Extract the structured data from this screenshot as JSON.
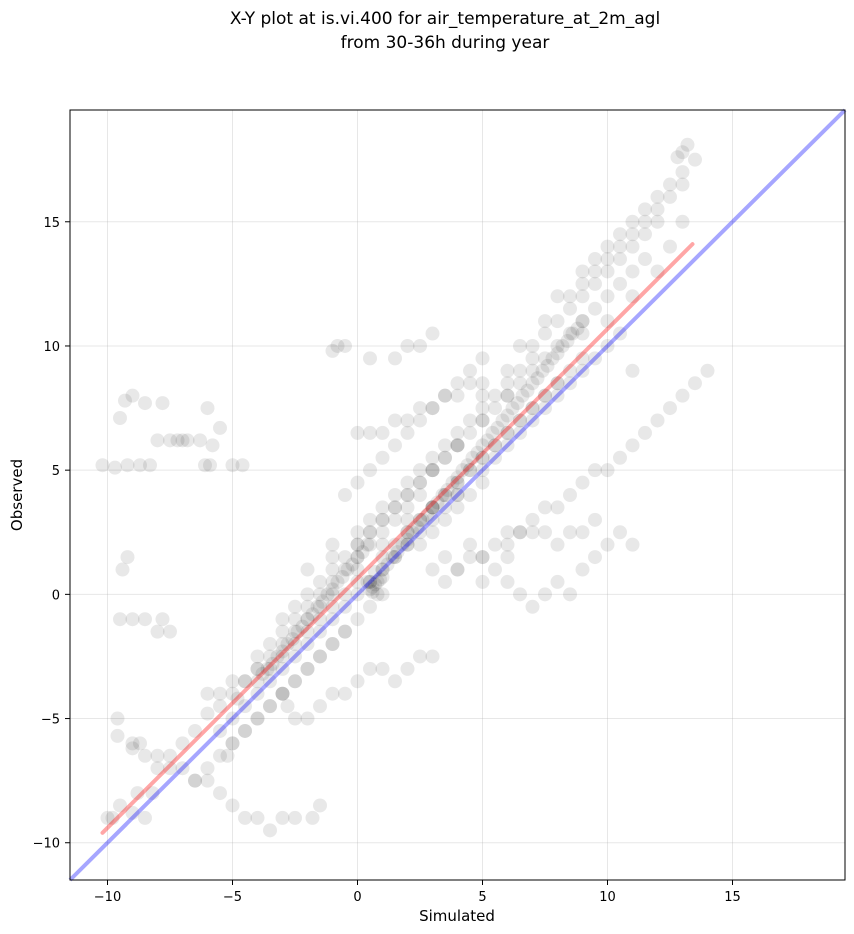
{
  "chart_data": {
    "type": "scatter",
    "title": "X-Y plot at is.vi.400 for air_temperature_at_2m_agl",
    "subtitle": "from 30-36h during year",
    "xlabel": "Simulated",
    "ylabel": "Observed",
    "xlim": [
      -11.5,
      19.5
    ],
    "ylim": [
      -11.5,
      19.5
    ],
    "xticks": [
      -10,
      -5,
      0,
      5,
      10,
      15
    ],
    "yticks": [
      -10,
      -5,
      0,
      5,
      10,
      15
    ],
    "grid": true,
    "colors": {
      "points": "#000000",
      "regression_line": "#ff0000",
      "identity_line": "#0000ff"
    },
    "series": [
      {
        "type": "scatter",
        "x": [
          -10.2,
          -9.7,
          -9.2,
          -8.7,
          -8.3,
          -9.5,
          -9.3,
          -9.0,
          -8.5,
          -8.0,
          -7.5,
          -7.2,
          -7.0,
          -6.8,
          -6.3,
          -5.8,
          -5.5,
          -5.0,
          -4.6,
          -6.0,
          -6.1,
          -5.9,
          -7.8,
          -9.4,
          -9.2,
          -9.5,
          -9.0,
          -8.5,
          -7.8,
          -7.5,
          -8.0,
          -9.6,
          -9.6,
          -9.0,
          -8.7,
          -10.0,
          -9.8,
          -9.5,
          -9.0,
          -8.8,
          -8.5,
          -8.2,
          -8.0,
          -7.5,
          -7.0,
          -6.5,
          -6.0,
          -5.5,
          -5.0,
          -4.8,
          -4.5,
          -4.0,
          -3.5,
          -3.0,
          -2.5,
          -2.0,
          -1.5,
          -1.0,
          -5.2,
          -5.0,
          -4.5,
          -4.0,
          -3.5,
          -3.0,
          -2.5,
          -2.0,
          -1.5,
          -1.0,
          -0.5,
          -6.5,
          -6.0,
          -5.5,
          -5.0,
          -4.5,
          -4.0,
          -3.5,
          -3.0,
          -2.5,
          -2.0,
          -1.5,
          -1.0,
          -0.5,
          0.0,
          0.5,
          1.0,
          -4.0,
          -3.5,
          -3.0,
          -2.5,
          -2.0,
          -1.5,
          -1.0,
          -0.5,
          0.0,
          0.5,
          1.0,
          1.5,
          2.0,
          2.5,
          -3.0,
          -2.5,
          -2.0,
          -1.5,
          -1.0,
          -0.5,
          0.0,
          0.5,
          1.0,
          1.5,
          2.0,
          2.5,
          3.0,
          3.5,
          4.0,
          -2.0,
          -1.0,
          0.0,
          0.5,
          1.0,
          1.5,
          2.0,
          2.5,
          3.0,
          3.5,
          4.0,
          4.5,
          5.0,
          5.5,
          6.0,
          -1.0,
          0.0,
          0.5,
          1.0,
          1.5,
          2.0,
          2.5,
          3.0,
          3.5,
          4.0,
          4.5,
          5.0,
          5.5,
          6.0,
          6.5,
          7.0,
          0.0,
          1.0,
          1.5,
          2.0,
          2.5,
          3.0,
          3.5,
          4.0,
          4.5,
          5.0,
          5.5,
          6.0,
          6.5,
          7.0,
          7.5,
          8.0,
          1.0,
          2.0,
          2.5,
          3.0,
          3.5,
          4.0,
          4.5,
          5.0,
          5.5,
          6.0,
          6.5,
          7.0,
          7.5,
          8.0,
          8.5,
          9.0,
          2.0,
          3.0,
          4.0,
          5.0,
          5.5,
          6.0,
          6.5,
          7.0,
          7.5,
          8.0,
          8.5,
          9.0,
          9.5,
          10.0,
          10.5,
          3.0,
          4.0,
          5.0,
          6.0,
          6.5,
          7.0,
          7.5,
          8.0,
          8.5,
          9.0,
          9.5,
          10.0,
          10.5,
          11.0,
          11.5,
          5.0,
          6.0,
          7.0,
          7.5,
          8.0,
          8.5,
          9.0,
          9.5,
          10.0,
          10.5,
          11.0,
          11.5,
          12.0,
          6.5,
          7.5,
          8.5,
          9.0,
          9.5,
          10.0,
          10.5,
          11.0,
          11.5,
          12.0,
          12.5,
          13.0,
          8.0,
          9.0,
          9.5,
          10.0,
          10.5,
          11.0,
          11.5,
          12.0,
          12.5,
          13.0,
          13.5,
          9.0,
          10.0,
          11.0,
          12.0,
          12.5,
          13.0,
          13.2,
          13.0,
          12.8,
          11.0,
          -1.0,
          -0.8,
          -0.5,
          0.5,
          1.5,
          2.0,
          2.5,
          3.0,
          0.0,
          0.5,
          1.0,
          1.5,
          2.0,
          2.5,
          3.0,
          3.5,
          4.0,
          4.5,
          5.0,
          3.0,
          3.5,
          4.0,
          5.0,
          6.0,
          6.5,
          7.0,
          7.5,
          8.0,
          8.5,
          9.0,
          9.5,
          10.0,
          10.5,
          11.0,
          -3.0,
          -2.8,
          -2.5,
          -2.0,
          -1.5,
          -1.0,
          -0.5,
          0.0,
          0.5,
          1.0,
          1.5,
          2.0,
          2.5,
          3.0,
          -1.8,
          -1.5,
          -2.5,
          -3.0,
          -3.5,
          -4.0,
          -4.5,
          -5.0,
          -5.5,
          -6.0,
          -6.5,
          -7.0,
          -7.5,
          -8.0,
          -8.5,
          -9.0,
          -6.0,
          -5.5,
          -5.0,
          -4.5,
          -4.0,
          -3.5,
          -3.0,
          -2.5,
          -2.0,
          -1.5,
          -1.0,
          -0.5,
          0.0,
          0.5,
          1.0,
          1.5,
          2.0,
          2.5,
          3.0,
          3.5,
          4.0,
          4.5,
          5.0,
          0.5,
          0.6,
          0.7,
          0.8,
          0.9,
          1.0,
          0.6,
          0.8,
          0.4,
          0.7,
          1.2,
          1.4,
          1.6,
          1.8,
          2.0,
          2.2,
          2.4,
          2.6,
          2.8,
          3.0,
          3.2,
          3.4,
          3.6,
          3.8,
          4.0,
          4.2,
          4.4,
          4.6,
          4.8,
          5.0,
          5.2,
          5.4,
          5.6,
          5.8,
          6.0,
          6.2,
          6.4,
          6.6,
          6.8,
          7.0,
          7.2,
          7.4,
          7.6,
          7.8,
          8.0,
          8.2,
          8.4,
          8.6,
          8.8,
          9.0,
          -4.0,
          -3.8,
          -3.6,
          -3.4,
          -3.2,
          -3.0,
          -2.8,
          -2.6,
          -2.4,
          -2.2,
          -2.0,
          -1.8,
          -1.6,
          -1.4,
          -1.2,
          -1.0,
          -0.8,
          -0.6,
          -0.4,
          -0.2,
          0.0,
          0.2,
          0.4,
          6.0,
          6.5,
          7.0,
          7.5,
          8.0,
          8.5,
          9.0,
          9.5,
          4.5,
          5.0,
          5.5,
          6.0,
          3.5,
          4.0,
          4.5,
          5.0,
          5.5,
          6.0,
          6.5,
          7.0,
          7.5,
          8.0,
          8.5,
          9.0,
          9.5,
          10.0,
          10.5,
          11.0,
          11.5,
          12.0,
          12.5,
          13.0,
          13.5,
          14.0,
          -0.5,
          0.0,
          0.5,
          1.0,
          1.5,
          2.0,
          2.5,
          3.0,
          3.5,
          4.0,
          4.5,
          5.0,
          -5.5,
          -5.0,
          -4.5,
          -4.0,
          -3.5,
          -3.0,
          -2.5,
          -2.0,
          -1.5,
          -1.0,
          -0.5,
          0.0,
          0.5,
          1.0,
          1.5,
          2.0,
          2.5,
          3.0,
          3.5,
          4.0
        ],
        "y": [
          5.2,
          5.1,
          5.2,
          5.2,
          5.2,
          7.1,
          7.8,
          8.0,
          7.7,
          6.2,
          6.2,
          6.2,
          6.2,
          6.2,
          6.2,
          6.0,
          6.7,
          5.2,
          5.2,
          7.5,
          5.2,
          5.2,
          7.7,
          1.0,
          1.5,
          -1.0,
          -1.0,
          -1.0,
          -1.0,
          -1.5,
          -1.5,
          -5.0,
          -5.7,
          -6.2,
          -6.0,
          -9.0,
          -9.0,
          -8.5,
          -8.8,
          -8.0,
          -9.0,
          -8.0,
          -7.0,
          -6.5,
          -6.0,
          -5.5,
          -4.8,
          -4.5,
          -4.0,
          -4.2,
          -3.5,
          -3.0,
          -2.5,
          -2.0,
          -1.5,
          -1.0,
          -0.5,
          0.0,
          -6.5,
          -6.0,
          -5.5,
          -5.0,
          -4.5,
          -4.0,
          -3.5,
          -3.0,
          -2.5,
          -2.0,
          -1.5,
          -7.5,
          -7.0,
          -6.5,
          -6.0,
          -5.5,
          -5.0,
          -4.5,
          -4.0,
          -3.5,
          -3.0,
          -2.5,
          -2.0,
          -1.5,
          -1.0,
          -0.5,
          0.0,
          -2.5,
          -2.0,
          -1.5,
          -1.0,
          -0.5,
          0.0,
          0.5,
          1.0,
          1.5,
          2.0,
          2.5,
          3.0,
          3.5,
          4.0,
          -1.0,
          -0.5,
          0.0,
          0.5,
          1.0,
          1.5,
          2.0,
          2.5,
          3.0,
          3.5,
          4.0,
          4.5,
          5.0,
          5.5,
          6.0,
          1.0,
          1.5,
          2.0,
          2.5,
          3.0,
          3.5,
          4.0,
          4.5,
          5.0,
          5.5,
          6.0,
          6.5,
          7.0,
          7.5,
          8.0,
          2.0,
          2.5,
          3.0,
          3.5,
          4.0,
          4.5,
          5.0,
          5.5,
          6.0,
          6.5,
          7.0,
          7.5,
          8.0,
          8.5,
          9.0,
          9.5,
          1.0,
          1.5,
          2.0,
          2.5,
          3.0,
          3.5,
          4.0,
          4.5,
          5.0,
          5.5,
          6.0,
          6.5,
          7.0,
          7.5,
          8.0,
          8.5,
          2.0,
          2.5,
          3.0,
          3.5,
          4.0,
          4.5,
          5.0,
          5.5,
          6.0,
          6.5,
          7.0,
          7.5,
          8.0,
          8.5,
          9.0,
          9.5,
          3.0,
          3.5,
          4.0,
          5.0,
          5.5,
          6.0,
          6.5,
          7.0,
          7.5,
          8.0,
          8.5,
          9.0,
          9.5,
          10.0,
          10.5,
          5.0,
          6.0,
          7.0,
          8.0,
          8.5,
          9.0,
          9.5,
          10.0,
          10.5,
          11.0,
          11.5,
          12.0,
          12.5,
          13.0,
          13.5,
          8.0,
          9.0,
          10.0,
          10.5,
          11.0,
          11.5,
          12.0,
          12.5,
          13.0,
          13.5,
          14.0,
          14.5,
          15.0,
          10.0,
          11.0,
          12.0,
          12.5,
          13.0,
          13.5,
          14.0,
          14.5,
          15.0,
          15.5,
          16.0,
          16.5,
          12.0,
          13.0,
          13.5,
          14.0,
          14.5,
          15.0,
          15.5,
          16.0,
          16.5,
          17.0,
          17.5,
          10.5,
          11.0,
          12.0,
          13.0,
          14.0,
          15.0,
          18.1,
          17.8,
          17.6,
          9.0,
          9.8,
          10.0,
          10.0,
          9.5,
          9.5,
          10.0,
          10.0,
          10.5,
          6.5,
          6.5,
          6.5,
          7.0,
          7.0,
          7.5,
          7.5,
          8.0,
          8.0,
          8.5,
          8.5,
          1.0,
          1.5,
          1.0,
          0.5,
          0.5,
          0.0,
          -0.5,
          0.0,
          0.5,
          0.0,
          1.0,
          1.5,
          2.0,
          2.5,
          2.0,
          -4.0,
          -4.5,
          -5.0,
          -5.0,
          -4.5,
          -4.0,
          -4.0,
          -3.5,
          -3.0,
          -3.0,
          -3.5,
          -3.0,
          -2.5,
          -2.5,
          -9.0,
          -8.5,
          -9.0,
          -9.0,
          -9.5,
          -9.0,
          -9.0,
          -8.5,
          -8.0,
          -7.5,
          -7.5,
          -7.0,
          -7.0,
          -6.5,
          -6.5,
          -6.0,
          -4.0,
          -4.0,
          -3.5,
          -3.5,
          -3.0,
          -3.0,
          -2.5,
          -2.0,
          -1.5,
          -1.0,
          -0.5,
          0.0,
          0.5,
          0.5,
          1.0,
          1.5,
          2.0,
          2.0,
          2.5,
          3.0,
          3.5,
          4.0,
          4.5,
          0.2,
          0.3,
          0.4,
          0.5,
          0.6,
          0.7,
          0.1,
          0.0,
          0.5,
          0.9,
          1.2,
          1.5,
          1.7,
          2.0,
          2.2,
          2.5,
          2.7,
          3.0,
          3.2,
          3.5,
          3.7,
          4.0,
          4.2,
          4.5,
          4.7,
          5.0,
          5.2,
          5.5,
          5.7,
          6.0,
          6.2,
          6.5,
          6.7,
          7.0,
          7.2,
          7.5,
          7.7,
          8.0,
          8.2,
          8.5,
          8.7,
          9.0,
          9.2,
          9.5,
          9.7,
          10.0,
          10.2,
          10.5,
          10.7,
          11.0,
          -3.5,
          -3.2,
          -3.0,
          -2.8,
          -2.5,
          -2.3,
          -2.0,
          -1.8,
          -1.5,
          -1.3,
          -1.0,
          -0.8,
          -0.5,
          -0.3,
          0.0,
          0.2,
          0.5,
          0.7,
          1.0,
          1.2,
          1.5,
          1.7,
          2.0,
          2.5,
          2.5,
          2.5,
          2.5,
          2.0,
          2.5,
          2.5,
          3.0,
          2.0,
          1.5,
          1.0,
          1.5,
          0.5,
          1.0,
          1.5,
          1.5,
          2.0,
          2.0,
          2.5,
          3.0,
          3.5,
          3.5,
          4.0,
          4.5,
          5.0,
          5.0,
          5.5,
          6.0,
          6.5,
          7.0,
          7.5,
          8.0,
          8.5,
          9.0,
          4.0,
          4.5,
          5.0,
          5.5,
          6.0,
          6.5,
          7.0,
          7.5,
          8.0,
          8.5,
          9.0,
          9.5,
          -5.5,
          -5.0,
          -4.5,
          -4.0,
          -3.5,
          -3.0,
          -2.5,
          -2.0,
          -1.5,
          -1.0,
          -0.5,
          0.0,
          0.5,
          1.0,
          1.5,
          2.0,
          2.5,
          3.0,
          3.5,
          4.0
        ]
      }
    ],
    "regression_line": {
      "x": [
        -10.2,
        13.4
      ],
      "y": [
        -9.6,
        14.1
      ]
    },
    "identity_line": {
      "x": [
        -11.5,
        19.5
      ],
      "y": [
        -11.5,
        19.5
      ]
    }
  }
}
